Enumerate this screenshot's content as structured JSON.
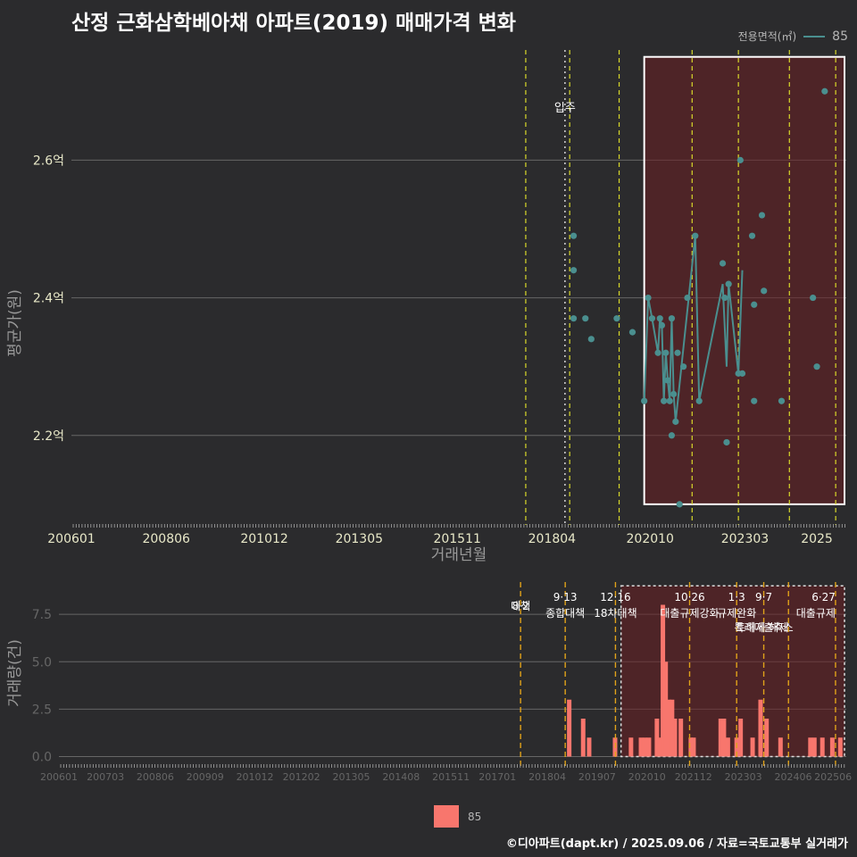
{
  "title": "산정 근화삼학베아채 아파트(2019) 매매가격 변화",
  "legend_top": {
    "title": "전용면적(㎡)",
    "label": "85",
    "color": "#4a8f8f"
  },
  "legend_bottom": {
    "label": "85",
    "color": "#f8766d"
  },
  "footer": "©디아파트(dapt.kr) / 2025.09.06 / 자료=국토교통부 실거래가",
  "chart_data": [
    {
      "type": "line",
      "title": "산정 근화삼학베아채 아파트(2019) 매매가격 변화",
      "xlabel": "거래년월",
      "ylabel": "평균가(원)",
      "x_ticks": [
        "200601",
        "200806",
        "201012",
        "201305",
        "201511",
        "201804",
        "202010",
        "202303",
        "2025"
      ],
      "y_ticks": [
        {
          "v": 2.2,
          "label": "2.2억"
        },
        {
          "v": 2.4,
          "label": "2.4억"
        },
        {
          "v": 2.6,
          "label": "2.6억"
        }
      ],
      "ylim": [
        2.07,
        2.76
      ],
      "xlim": [
        2006.0,
        2025.75
      ],
      "grid": true,
      "move_in": {
        "x": 2018.58,
        "label": "입주"
      },
      "policy_lines": [
        2017.58,
        2018.7,
        2019.96,
        2021.82,
        2023.0,
        2024.3,
        2025.48
      ],
      "highlight": {
        "x0": 2020.6,
        "x1": 2025.75,
        "y0": 2.1,
        "y1": 2.75
      },
      "series": [
        {
          "name": "85",
          "points": [
            [
              2018.8,
              2.49
            ],
            [
              2018.8,
              2.44
            ],
            [
              2018.8,
              2.37
            ],
            [
              2019.1,
              2.37
            ],
            [
              2019.25,
              2.34
            ],
            [
              2019.9,
              2.37
            ],
            [
              2020.3,
              2.35
            ],
            [
              2020.6,
              2.25
            ],
            [
              2020.7,
              2.4
            ],
            [
              2020.8,
              2.37
            ],
            [
              2020.95,
              2.32
            ],
            [
              2021.0,
              2.37
            ],
            [
              2021.05,
              2.36
            ],
            [
              2021.1,
              2.25
            ],
            [
              2021.15,
              2.32
            ],
            [
              2021.2,
              2.28
            ],
            [
              2021.25,
              2.25
            ],
            [
              2021.3,
              2.37
            ],
            [
              2021.3,
              2.2
            ],
            [
              2021.35,
              2.26
            ],
            [
              2021.4,
              2.22
            ],
            [
              2021.45,
              2.32
            ],
            [
              2021.5,
              2.1
            ],
            [
              2021.6,
              2.3
            ],
            [
              2021.7,
              2.4
            ],
            [
              2021.9,
              2.49
            ],
            [
              2022.0,
              2.25
            ],
            [
              2022.6,
              2.45
            ],
            [
              2022.65,
              2.4
            ],
            [
              2022.7,
              2.19
            ],
            [
              2022.75,
              2.42
            ],
            [
              2023.0,
              2.29
            ],
            [
              2023.05,
              2.6
            ],
            [
              2023.1,
              2.29
            ],
            [
              2023.35,
              2.49
            ],
            [
              2023.4,
              2.39
            ],
            [
              2023.4,
              2.25
            ],
            [
              2023.6,
              2.52
            ],
            [
              2023.65,
              2.41
            ],
            [
              2024.1,
              2.25
            ],
            [
              2024.9,
              2.4
            ],
            [
              2025.0,
              2.3
            ],
            [
              2025.2,
              2.7
            ]
          ],
          "line": [
            [
              2020.6,
              2.25
            ],
            [
              2020.7,
              2.4
            ],
            [
              2020.8,
              2.37
            ],
            [
              2020.95,
              2.32
            ],
            [
              2021.0,
              2.37
            ],
            [
              2021.05,
              2.36
            ],
            [
              2021.1,
              2.25
            ],
            [
              2021.15,
              2.32
            ],
            [
              2021.2,
              2.28
            ],
            [
              2021.25,
              2.25
            ],
            [
              2021.3,
              2.37
            ],
            [
              2021.35,
              2.26
            ],
            [
              2021.4,
              2.22
            ],
            [
              2021.9,
              2.49
            ],
            [
              2022.0,
              2.25
            ],
            [
              2022.6,
              2.42
            ],
            [
              2022.7,
              2.3
            ],
            [
              2022.75,
              2.42
            ],
            [
              2023.0,
              2.29
            ],
            [
              2023.1,
              2.44
            ]
          ]
        }
      ]
    },
    {
      "type": "bar",
      "ylabel": "거래량(건)",
      "x_ticks": [
        "200601",
        "200703",
        "200806",
        "200909",
        "201012",
        "201202",
        "201305",
        "201408",
        "201511",
        "201701",
        "201804",
        "201907",
        "202010",
        "202112",
        "202303",
        "202406",
        "202506"
      ],
      "y_ticks": [
        {
          "v": 0,
          "label": "0.0"
        },
        {
          "v": 2.5,
          "label": "2.5"
        },
        {
          "v": 5,
          "label": "5.0"
        },
        {
          "v": 7.5,
          "label": "7.5"
        }
      ],
      "ylim": [
        -0.4,
        9.2
      ],
      "xlim": [
        2006.0,
        2025.75
      ],
      "grid": true,
      "highlight": {
        "x0": 2020.1,
        "x1": 2025.75,
        "y0": 0,
        "y1": 9.0
      },
      "policies": [
        {
          "x": 2017.58,
          "date": "8·2",
          "text": "대책"
        },
        {
          "x": 2018.7,
          "date": "9·13",
          "text": "종합대책"
        },
        {
          "x": 2019.96,
          "date": "12·16",
          "text": "18차대책"
        },
        {
          "x": 2021.82,
          "date": "10·26",
          "text": "대출규제강화"
        },
        {
          "x": 2023.0,
          "date": "1·3",
          "text": "규제완화"
        },
        {
          "x": 2023.68,
          "date": "9·7",
          "text": "특례대출축소"
        },
        {
          "x": 2024.3,
          "date": "",
          "text": "토허제 해제"
        },
        {
          "x": 2025.48,
          "date": "6·27",
          "text": "대출규제"
        }
      ],
      "bars": [
        [
          2018.8,
          3
        ],
        [
          2019.15,
          2
        ],
        [
          2019.3,
          1
        ],
        [
          2019.95,
          1
        ],
        [
          2020.35,
          1
        ],
        [
          2020.6,
          1
        ],
        [
          2020.7,
          1
        ],
        [
          2020.8,
          1
        ],
        [
          2021.0,
          2
        ],
        [
          2021.08,
          1
        ],
        [
          2021.15,
          8
        ],
        [
          2021.22,
          5
        ],
        [
          2021.3,
          3
        ],
        [
          2021.38,
          3
        ],
        [
          2021.45,
          2
        ],
        [
          2021.6,
          2
        ],
        [
          2021.85,
          1
        ],
        [
          2021.92,
          1
        ],
        [
          2022.6,
          2
        ],
        [
          2022.68,
          2
        ],
        [
          2022.78,
          1
        ],
        [
          2023.0,
          1
        ],
        [
          2023.1,
          2
        ],
        [
          2023.4,
          1
        ],
        [
          2023.6,
          3
        ],
        [
          2023.75,
          2
        ],
        [
          2024.1,
          1
        ],
        [
          2024.85,
          1
        ],
        [
          2024.95,
          1
        ],
        [
          2025.15,
          1
        ],
        [
          2025.4,
          1
        ],
        [
          2025.6,
          1
        ]
      ]
    }
  ]
}
